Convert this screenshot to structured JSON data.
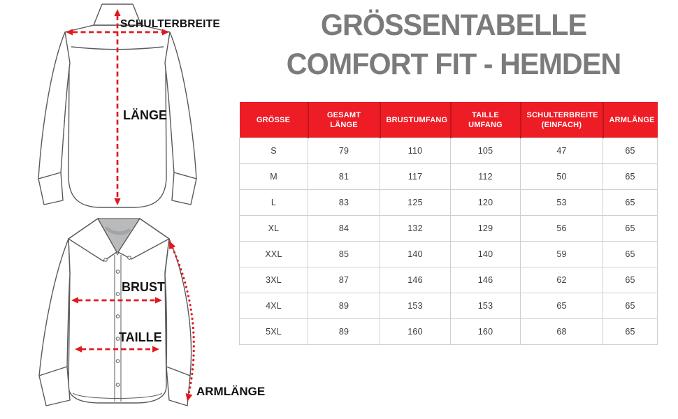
{
  "title": {
    "line1": "GRÖSSENTABELLE",
    "line2": "COMFORT FIT - HEMDEN"
  },
  "diagrams": {
    "back_shirt": {
      "labels": {
        "shoulder_width": "SCHULTERBREITE",
        "length": "LÄNGE"
      }
    },
    "front_shirt": {
      "labels": {
        "chest": "BRUST",
        "waist": "TAILLE",
        "arm_length": "ARMLÄNGE"
      }
    }
  },
  "chart_data": {
    "type": "table",
    "title": "GRÖSSENTABELLE COMFORT FIT - HEMDEN",
    "columns": [
      "GRÖSSE",
      "GESAMT LÄNGE",
      "BRUSTUMFANG",
      "TAILLE UMFANG",
      "SCHULTERBREITE (EINFACH)",
      "ARMLÄNGE"
    ],
    "rows": [
      [
        "S",
        "79",
        "110",
        "105",
        "47",
        "65"
      ],
      [
        "M",
        "81",
        "117",
        "112",
        "50",
        "65"
      ],
      [
        "L",
        "83",
        "125",
        "120",
        "53",
        "65"
      ],
      [
        "XL",
        "84",
        "132",
        "129",
        "56",
        "65"
      ],
      [
        "XXL",
        "85",
        "140",
        "140",
        "59",
        "65"
      ],
      [
        "3XL",
        "87",
        "146",
        "146",
        "62",
        "65"
      ],
      [
        "4XL",
        "89",
        "153",
        "153",
        "65",
        "65"
      ],
      [
        "5XL",
        "89",
        "160",
        "160",
        "68",
        "65"
      ]
    ]
  },
  "colors": {
    "header_red": "#ee1c25",
    "arrow_red": "#e1191f",
    "title_gray": "#7b7b7b",
    "line_gray": "#595a5c"
  }
}
